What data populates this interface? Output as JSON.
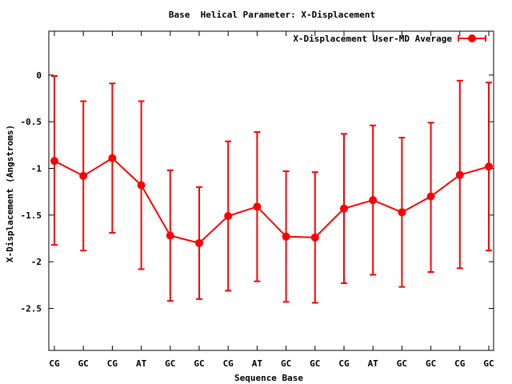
{
  "chart_data": {
    "type": "line",
    "title": "Base  Helical Parameter: X-Displacement",
    "xlabel": "Sequence Base",
    "ylabel": "X-Displacement (Angstroms)",
    "ylim": [
      -2.95,
      0.47
    ],
    "y_ticks": [
      0,
      -0.5,
      -1,
      -1.5,
      -2,
      -2.5
    ],
    "y_tick_labels": [
      "0",
      "-0.5",
      "-1",
      "-1.5",
      "-2",
      "-2.5"
    ],
    "categories": [
      "CG",
      "GC",
      "CG",
      "AT",
      "GC",
      "GC",
      "CG",
      "AT",
      "GC",
      "GC",
      "CG",
      "AT",
      "GC",
      "GC",
      "CG",
      "GC"
    ],
    "grid": false,
    "legend_position": "top-right",
    "series": [
      {
        "name": "X-Displacement User-MD Average",
        "color": "#ff0000",
        "values": [
          -0.92,
          -1.08,
          -0.89,
          -1.18,
          -1.72,
          -1.8,
          -1.51,
          -1.41,
          -1.73,
          -1.74,
          -1.43,
          -1.34,
          -1.47,
          -1.3,
          -1.07,
          -0.98
        ],
        "err_low": [
          -1.82,
          -1.88,
          -1.69,
          -2.08,
          -2.42,
          -2.4,
          -2.31,
          -2.21,
          -2.43,
          -2.44,
          -2.23,
          -2.14,
          -2.27,
          -2.11,
          -2.07,
          -1.88
        ],
        "err_high": [
          -0.01,
          -0.28,
          -0.09,
          -0.28,
          -1.02,
          -1.2,
          -0.71,
          -0.61,
          -1.03,
          -1.04,
          -0.63,
          -0.54,
          -0.67,
          -0.51,
          -0.06,
          -0.08
        ]
      }
    ]
  }
}
